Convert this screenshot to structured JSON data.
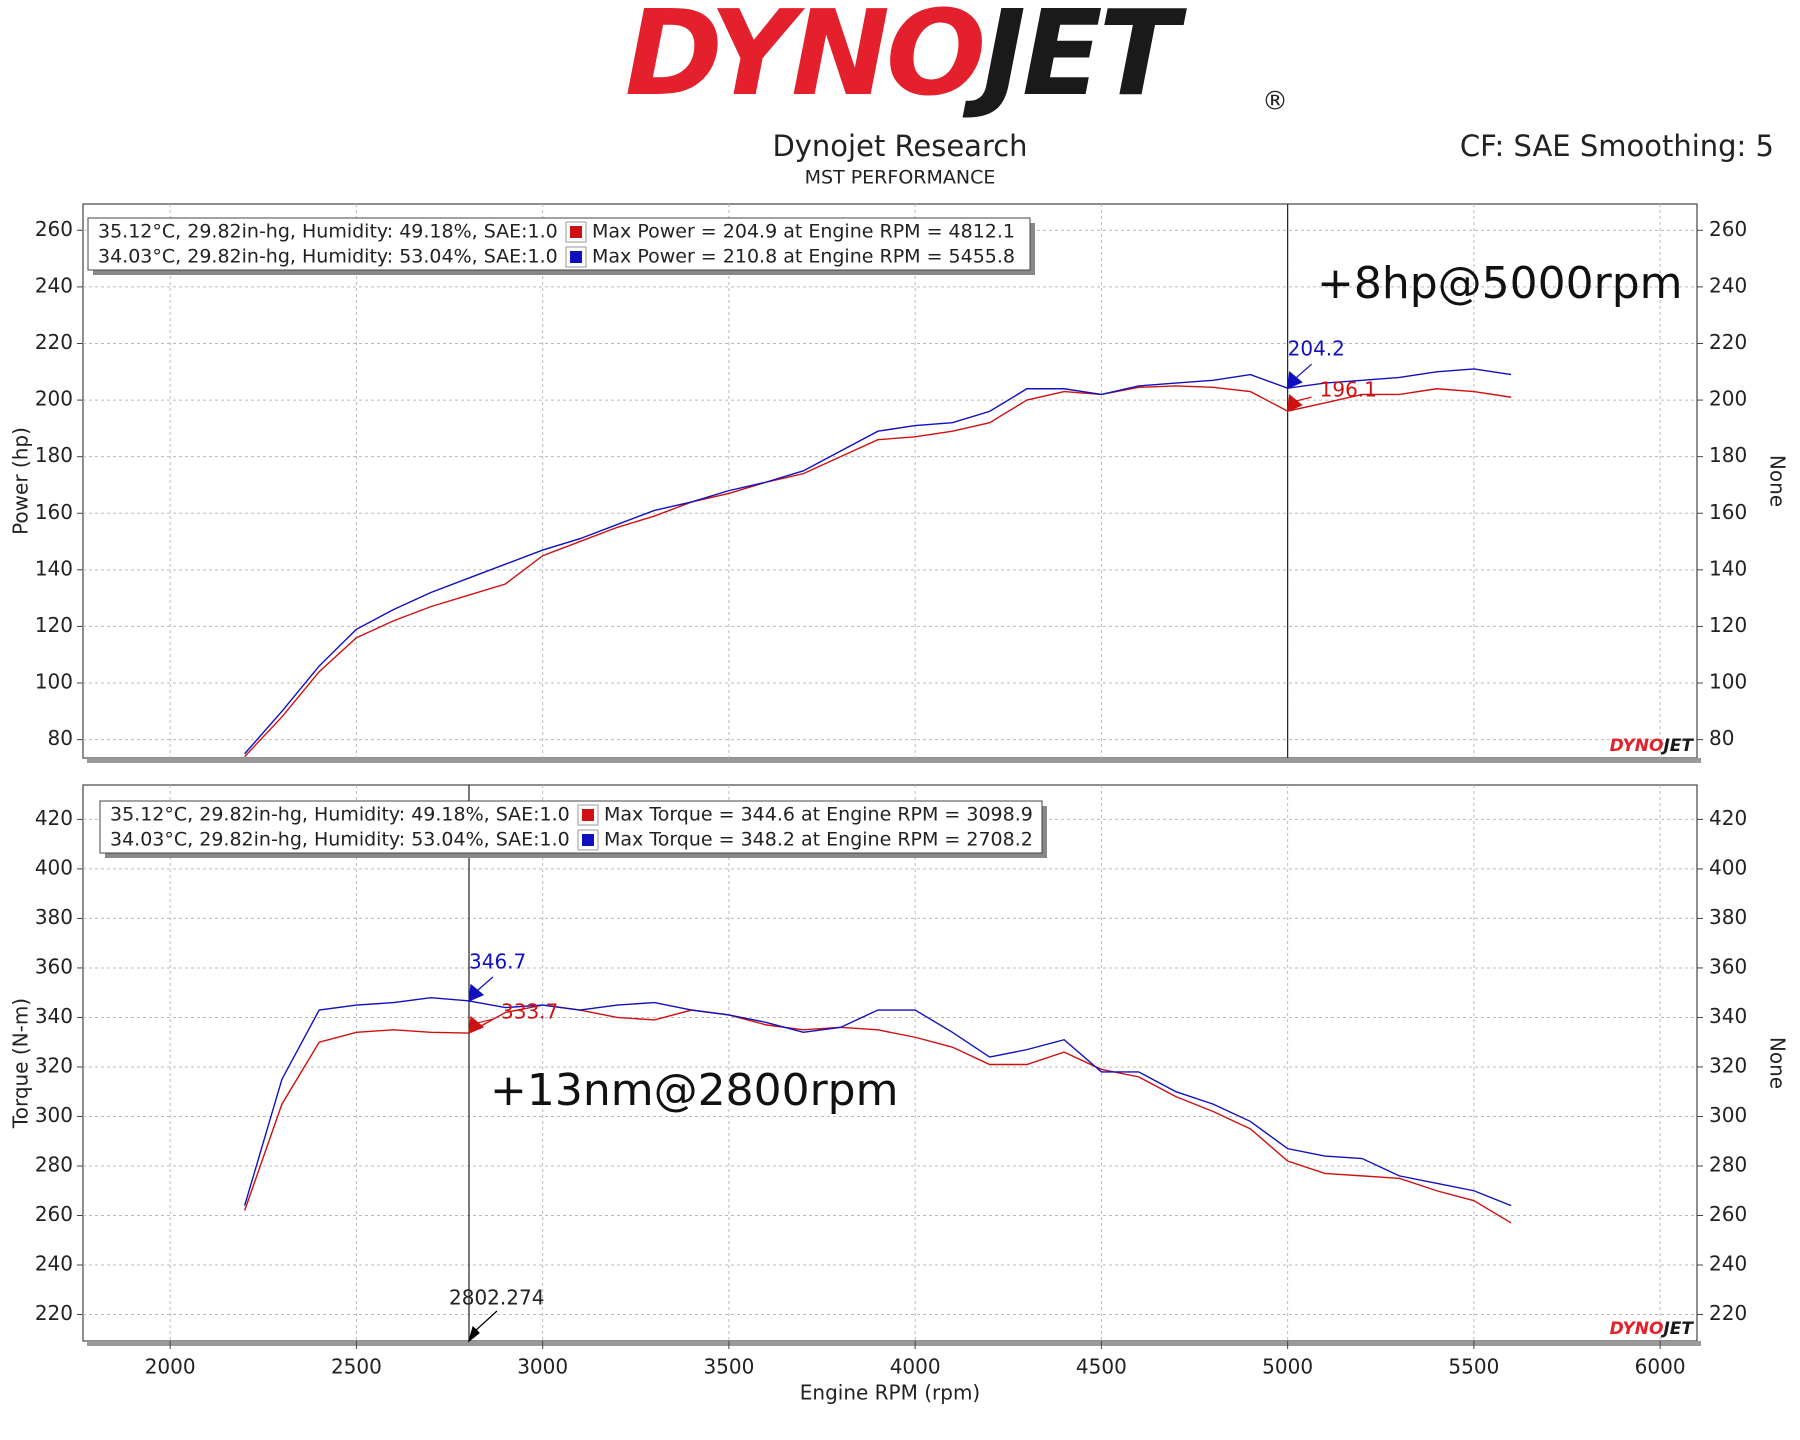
{
  "header": {
    "logo_red": "DYNO",
    "logo_black": "JET",
    "registered": "®",
    "title": "Dynojet Research",
    "subtitle": "MST PERFORMANCE",
    "settings": "CF: SAE Smoothing: 5"
  },
  "chart_data": [
    {
      "type": "line",
      "ylabel": "Power (hp)",
      "y2label": "None",
      "x": [
        2200,
        2300,
        2400,
        2500,
        2600,
        2700,
        2800,
        2900,
        3000,
        3100,
        3200,
        3300,
        3400,
        3500,
        3600,
        3700,
        3800,
        3900,
        4000,
        4100,
        4200,
        4300,
        4400,
        4500,
        4600,
        4700,
        4800,
        4900,
        5000,
        5100,
        5200,
        5300,
        5400,
        5500,
        5600
      ],
      "xlim": [
        1766,
        6099
      ],
      "xticks": [
        2000,
        2500,
        3000,
        3500,
        4000,
        4500,
        5000,
        5500,
        6000
      ],
      "ylim": [
        73.5,
        269.3
      ],
      "yticks": [
        80,
        100,
        120,
        140,
        160,
        180,
        200,
        220,
        240,
        260
      ],
      "y2lim": [
        73.5,
        269.3
      ],
      "y2ticks": [
        80,
        100,
        120,
        140,
        160,
        180,
        200,
        220,
        240,
        260
      ],
      "grid": true,
      "cursor_x": 5000,
      "annotation": "+8hp@5000rpm",
      "series": [
        {
          "name": "35.12°C, 29.82in-hg, Humidity: 49.18%, SAE:1.0",
          "color": "#d01010",
          "max_label": "Max Power = 204.9 at Engine RPM = 4812.1",
          "cursor_value": 196.1,
          "values": [
            74,
            88,
            104,
            116,
            122,
            127,
            131,
            135,
            145,
            150,
            155,
            159,
            164,
            167,
            171,
            174,
            180,
            186,
            187,
            189,
            192,
            200,
            203,
            202,
            204.5,
            205,
            204.5,
            203,
            196.1,
            199,
            202,
            202,
            204,
            203,
            201
          ]
        },
        {
          "name": "34.03°C, 29.82in-hg, Humidity: 53.04%, SAE:1.0",
          "color": "#1010c0",
          "max_label": "Max Power = 210.8 at Engine RPM = 5455.8",
          "cursor_value": 204.2,
          "values": [
            75,
            90,
            106,
            119,
            126,
            132,
            137,
            142,
            147,
            151,
            156,
            161,
            164,
            168,
            171,
            175,
            182,
            189,
            191,
            192,
            196,
            204,
            204,
            202,
            205,
            206,
            207,
            209,
            204.2,
            206,
            207,
            208,
            210,
            211,
            209
          ]
        }
      ]
    },
    {
      "type": "line",
      "ylabel": "Torque (N-m)",
      "y2label": "None",
      "xlabel": "Engine RPM (rpm)",
      "x": [
        2200,
        2300,
        2400,
        2500,
        2600,
        2700,
        2800,
        2900,
        3000,
        3100,
        3200,
        3300,
        3400,
        3500,
        3600,
        3700,
        3800,
        3900,
        4000,
        4100,
        4200,
        4300,
        4400,
        4500,
        4600,
        4700,
        4800,
        4900,
        5000,
        5100,
        5200,
        5300,
        5400,
        5500,
        5600
      ],
      "xlim": [
        1766,
        6099
      ],
      "xticks": [
        2000,
        2500,
        3000,
        3500,
        4000,
        4500,
        5000,
        5500,
        6000
      ],
      "ylim": [
        209.3,
        433.9
      ],
      "yticks": [
        220,
        240,
        260,
        280,
        300,
        320,
        340,
        360,
        380,
        400,
        420
      ],
      "y2lim": [
        209.3,
        433.9
      ],
      "y2ticks": [
        220,
        240,
        260,
        280,
        300,
        320,
        340,
        360,
        380,
        400,
        420
      ],
      "grid": true,
      "cursor_x": 2802.274,
      "cursor_x_shown": true,
      "annotation": "+13nm@2800rpm",
      "series": [
        {
          "name": "35.12°C, 29.82in-hg, Humidity: 49.18%, SAE:1.0",
          "color": "#d01010",
          "max_label": "Max Torque = 344.6 at Engine RPM = 3098.9",
          "cursor_value": 333.7,
          "values": [
            262,
            305,
            330,
            334,
            335,
            334,
            333.7,
            342,
            345,
            343,
            340,
            339,
            343,
            341,
            337,
            335,
            336,
            335,
            332,
            328,
            321,
            321,
            326,
            319,
            316,
            308,
            302,
            295,
            282,
            277,
            276,
            275,
            270,
            266,
            257
          ]
        },
        {
          "name": "34.03°C, 29.82in-hg, Humidity: 53.04%, SAE:1.0",
          "color": "#1010c0",
          "max_label": "Max Torque = 348.2 at Engine RPM = 2708.2",
          "cursor_value": 346.7,
          "values": [
            264,
            315,
            343,
            345,
            346,
            348,
            346.7,
            344,
            345,
            343,
            345,
            346,
            343,
            341,
            338,
            334,
            336,
            343,
            343,
            334,
            324,
            327,
            331,
            318,
            318,
            310,
            305,
            298,
            287,
            284,
            283,
            276,
            273,
            270,
            264
          ]
        }
      ]
    }
  ]
}
